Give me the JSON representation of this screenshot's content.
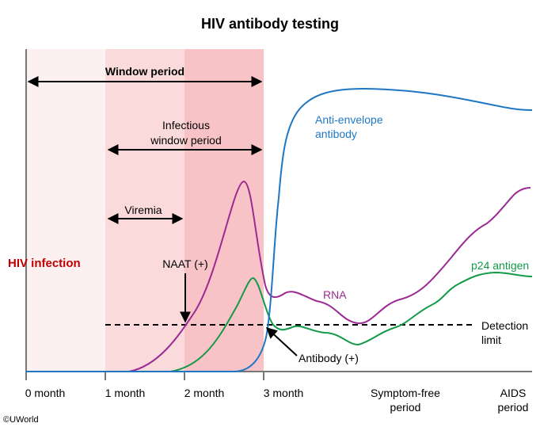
{
  "title": "HIV antibody testing",
  "x_ticks": [
    "0 month",
    "1 month",
    "2 month",
    "3 month"
  ],
  "phase_labels": {
    "symptom_free": [
      "Symptom-free",
      "period"
    ],
    "aids": [
      "AIDS",
      "period"
    ]
  },
  "periods": {
    "window": "Window period",
    "infectious": [
      "Infectious",
      "window period"
    ],
    "viremia": "Viremia"
  },
  "annotations": {
    "hiv_infection": "HIV infection",
    "naat": "NAAT (+)",
    "antibody": "Antibody (+)",
    "detection_limit": [
      "Detection",
      "limit"
    ]
  },
  "series": {
    "anti_envelope": {
      "label": [
        "Anti-envelope",
        "antibody"
      ],
      "color": "#1f77c4"
    },
    "rna": {
      "label": "RNA",
      "color": "#9b2a94"
    },
    "p24": {
      "label": "p24 antigen",
      "color": "#139a48"
    }
  },
  "colors": {
    "band1": "#fdf0f1",
    "band2": "#fadadb",
    "band3": "#f7c3c6",
    "infection": "#c00000"
  },
  "copyright": "©UWorld"
}
